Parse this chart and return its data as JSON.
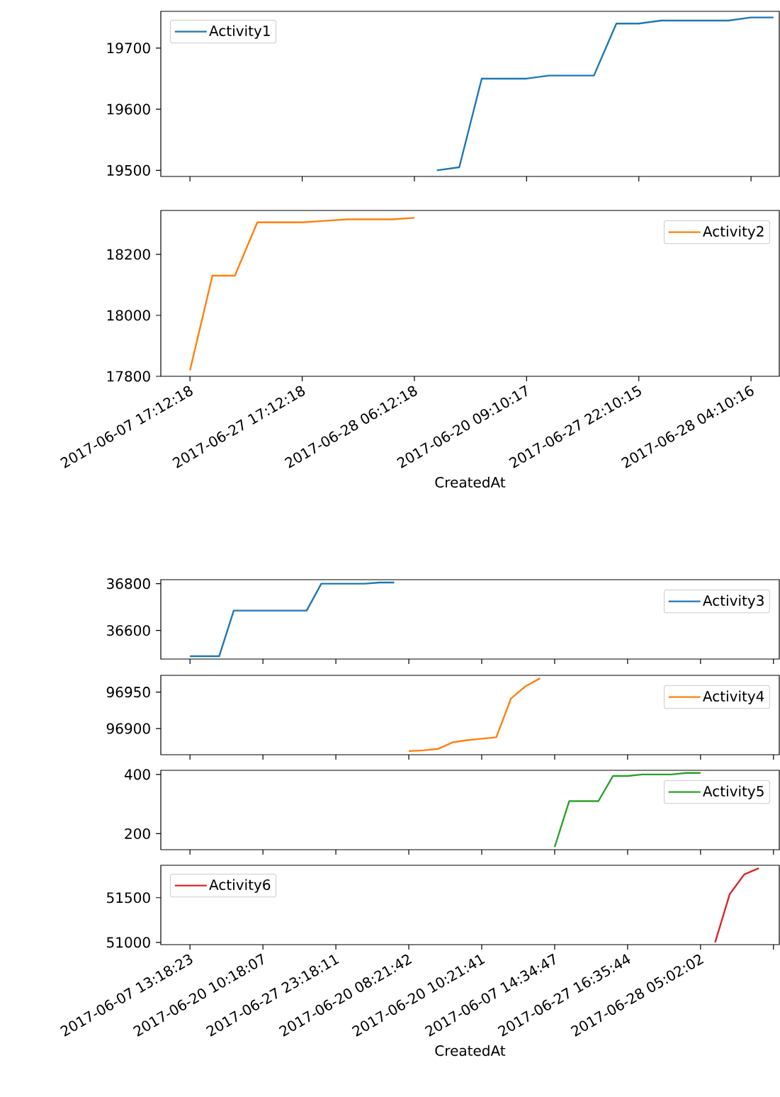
{
  "chart_data": [
    {
      "type": "line",
      "categories": [
        "2017-06-07 17:12:18",
        null,
        null,
        null,
        null,
        "2017-06-27 17:12:18",
        null,
        null,
        null,
        null,
        "2017-06-28 06:12:18",
        null,
        null,
        null,
        null,
        "2017-06-20 09:10:17",
        null,
        null,
        null,
        null,
        "2017-06-27 22:10:15",
        null,
        null,
        null,
        null,
        "2017-06-28 04:10:16",
        null
      ],
      "series": [
        {
          "name": "Activity1",
          "color": "#1f77b4",
          "values": [
            null,
            null,
            null,
            null,
            null,
            null,
            null,
            null,
            null,
            null,
            null,
            19500,
            19505,
            19650,
            19650,
            19650,
            19655,
            19655,
            19655,
            19740,
            19740,
            19745,
            19745,
            19745,
            19745,
            19750,
            19750
          ]
        }
      ],
      "ylim": [
        19490,
        19760
      ],
      "yticks": [
        19500,
        19600,
        19700
      ],
      "legend": "top left",
      "tick_labels": "y"
    },
    {
      "type": "line",
      "categories": [
        "2017-06-07 17:12:18",
        null,
        null,
        null,
        null,
        "2017-06-27 17:12:18",
        null,
        null,
        null,
        null,
        "2017-06-28 06:12:18",
        null,
        null,
        null,
        null,
        "2017-06-20 09:10:17",
        null,
        null,
        null,
        null,
        "2017-06-27 22:10:15",
        null,
        null,
        null,
        null,
        "2017-06-28 04:10:16",
        null
      ],
      "series": [
        {
          "name": "Activity2",
          "color": "#ff7f0e",
          "values": [
            17820,
            18130,
            18130,
            18305,
            18305,
            18305,
            18310,
            18315,
            18315,
            18315,
            18320,
            null,
            null,
            null,
            null,
            null,
            null,
            null,
            null,
            null,
            null,
            null,
            null,
            null,
            null,
            null,
            null
          ]
        }
      ],
      "xlabel": "CreatedAt",
      "ylim": [
        17800,
        18344
      ],
      "yticks": [
        17800,
        18000,
        18200
      ],
      "legend": "top right"
    },
    {
      "type": "line",
      "categories": [
        "2017-06-07 13:18:23",
        null,
        null,
        null,
        null,
        "2017-06-20 10:18:07",
        null,
        null,
        null,
        null,
        "2017-06-27 23:18:11",
        null,
        null,
        null,
        null,
        "2017-06-20 08:21:42",
        null,
        null,
        null,
        null,
        "2017-06-20 10:21:41",
        null,
        null,
        null,
        null,
        "2017-06-07 14:34:47",
        null,
        null,
        null,
        null,
        "2017-06-27 16:35:44",
        null,
        null,
        null,
        null,
        "2017-06-28 05:02:02",
        null,
        null,
        null,
        null,
        null
      ],
      "series": [
        {
          "name": "Activity3",
          "color": "#1f77b4",
          "values": [
            36490,
            36490,
            36490,
            36685,
            36685,
            36685,
            36685,
            36685,
            36685,
            36800,
            36800,
            36800,
            36800,
            36805,
            36805,
            null,
            null,
            null,
            null,
            null,
            null,
            null,
            null,
            null,
            null,
            null,
            null,
            null,
            null,
            null,
            null,
            null,
            null,
            null,
            null,
            null,
            null,
            null,
            null,
            null,
            null
          ]
        }
      ],
      "ylim": [
        36478,
        36817
      ],
      "yticks": [
        36600,
        36800
      ],
      "legend": "top right",
      "tick_labels": "y"
    },
    {
      "type": "line",
      "categories": [
        "2017-06-07 13:18:23",
        null,
        null,
        null,
        null,
        "2017-06-20 10:18:07",
        null,
        null,
        null,
        null,
        "2017-06-27 23:18:11",
        null,
        null,
        null,
        null,
        "2017-06-20 08:21:42",
        null,
        null,
        null,
        null,
        "2017-06-20 10:21:41",
        null,
        null,
        null,
        null,
        "2017-06-07 14:34:47",
        null,
        null,
        null,
        null,
        "2017-06-27 16:35:44",
        null,
        null,
        null,
        null,
        "2017-06-28 05:02:02",
        null,
        null,
        null,
        null,
        null
      ],
      "series": [
        {
          "name": "Activity4",
          "color": "#ff7f0e",
          "values": [
            null,
            null,
            null,
            null,
            null,
            null,
            null,
            null,
            null,
            null,
            null,
            null,
            null,
            null,
            null,
            96869,
            96870,
            96872,
            96881,
            96884,
            96886,
            96888,
            96941,
            96958,
            96969,
            null,
            null,
            null,
            null,
            null,
            null,
            null,
            null,
            null,
            null,
            null,
            null,
            null,
            null,
            null,
            null
          ]
        }
      ],
      "ylim": [
        96864,
        96973
      ],
      "yticks": [
        96900,
        96950
      ],
      "legend": "top right",
      "tick_labels": "y"
    },
    {
      "type": "line",
      "categories": [
        "2017-06-07 13:18:23",
        null,
        null,
        null,
        null,
        "2017-06-20 10:18:07",
        null,
        null,
        null,
        null,
        "2017-06-27 23:18:11",
        null,
        null,
        null,
        null,
        "2017-06-20 08:21:42",
        null,
        null,
        null,
        null,
        "2017-06-20 10:21:41",
        null,
        null,
        null,
        null,
        "2017-06-07 14:34:47",
        null,
        null,
        null,
        null,
        "2017-06-27 16:35:44",
        null,
        null,
        null,
        null,
        "2017-06-28 05:02:02",
        null,
        null,
        null,
        null,
        null
      ],
      "series": [
        {
          "name": "Activity5",
          "color": "#2ca02c",
          "values": [
            null,
            null,
            null,
            null,
            null,
            null,
            null,
            null,
            null,
            null,
            null,
            null,
            null,
            null,
            null,
            null,
            null,
            null,
            null,
            null,
            null,
            null,
            null,
            null,
            null,
            155,
            310,
            310,
            310,
            395,
            395,
            400,
            400,
            400,
            405,
            405,
            null,
            null,
            null,
            null,
            null
          ]
        }
      ],
      "ylim": [
        146,
        414
      ],
      "yticks": [
        200,
        400
      ],
      "legend": "top right",
      "tick_labels": "y"
    },
    {
      "type": "line",
      "categories": [
        "2017-06-07 13:18:23",
        null,
        null,
        null,
        null,
        "2017-06-20 10:18:07",
        null,
        null,
        null,
        null,
        "2017-06-27 23:18:11",
        null,
        null,
        null,
        null,
        "2017-06-20 08:21:42",
        null,
        null,
        null,
        null,
        "2017-06-20 10:21:41",
        null,
        null,
        null,
        null,
        "2017-06-07 14:34:47",
        null,
        null,
        null,
        null,
        "2017-06-27 16:35:44",
        null,
        null,
        null,
        null,
        "2017-06-28 05:02:02",
        null,
        null,
        null,
        null,
        null
      ],
      "series": [
        {
          "name": "Activity6",
          "color": "#d62728",
          "values": [
            null,
            null,
            null,
            null,
            null,
            null,
            null,
            null,
            null,
            null,
            null,
            null,
            null,
            null,
            null,
            null,
            null,
            null,
            null,
            null,
            null,
            null,
            null,
            null,
            null,
            null,
            null,
            null,
            null,
            null,
            null,
            null,
            null,
            null,
            null,
            null,
            51000,
            51540,
            51760,
            51830,
            null
          ]
        }
      ],
      "xlabel": "CreatedAt",
      "ylim": [
        50975,
        51862
      ],
      "yticks": [
        51000,
        51500
      ],
      "legend": "top left"
    }
  ]
}
